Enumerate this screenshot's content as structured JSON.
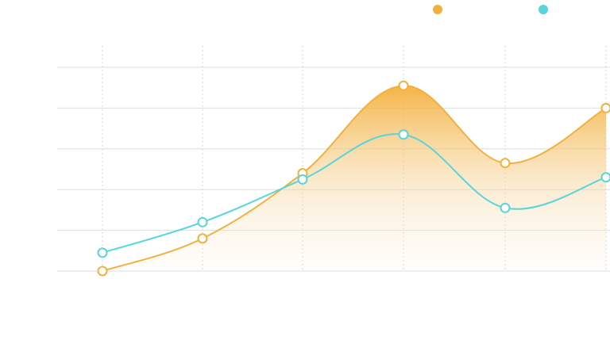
{
  "chart_data": {
    "type": "area",
    "title": "",
    "xlabel": "",
    "ylabel": "",
    "categories": [
      "",
      "",
      "",
      "",
      "",
      ""
    ],
    "ylim": [
      0,
      100
    ],
    "grid": true,
    "legend_position": "top-right",
    "series": [
      {
        "style": "area",
        "color": "#f4b03c",
        "values": [
          0,
          16,
          48,
          91,
          53,
          80
        ]
      },
      {
        "style": "line",
        "color": "#56d6dc",
        "values": [
          9,
          24,
          45,
          67,
          31,
          46
        ]
      }
    ]
  }
}
